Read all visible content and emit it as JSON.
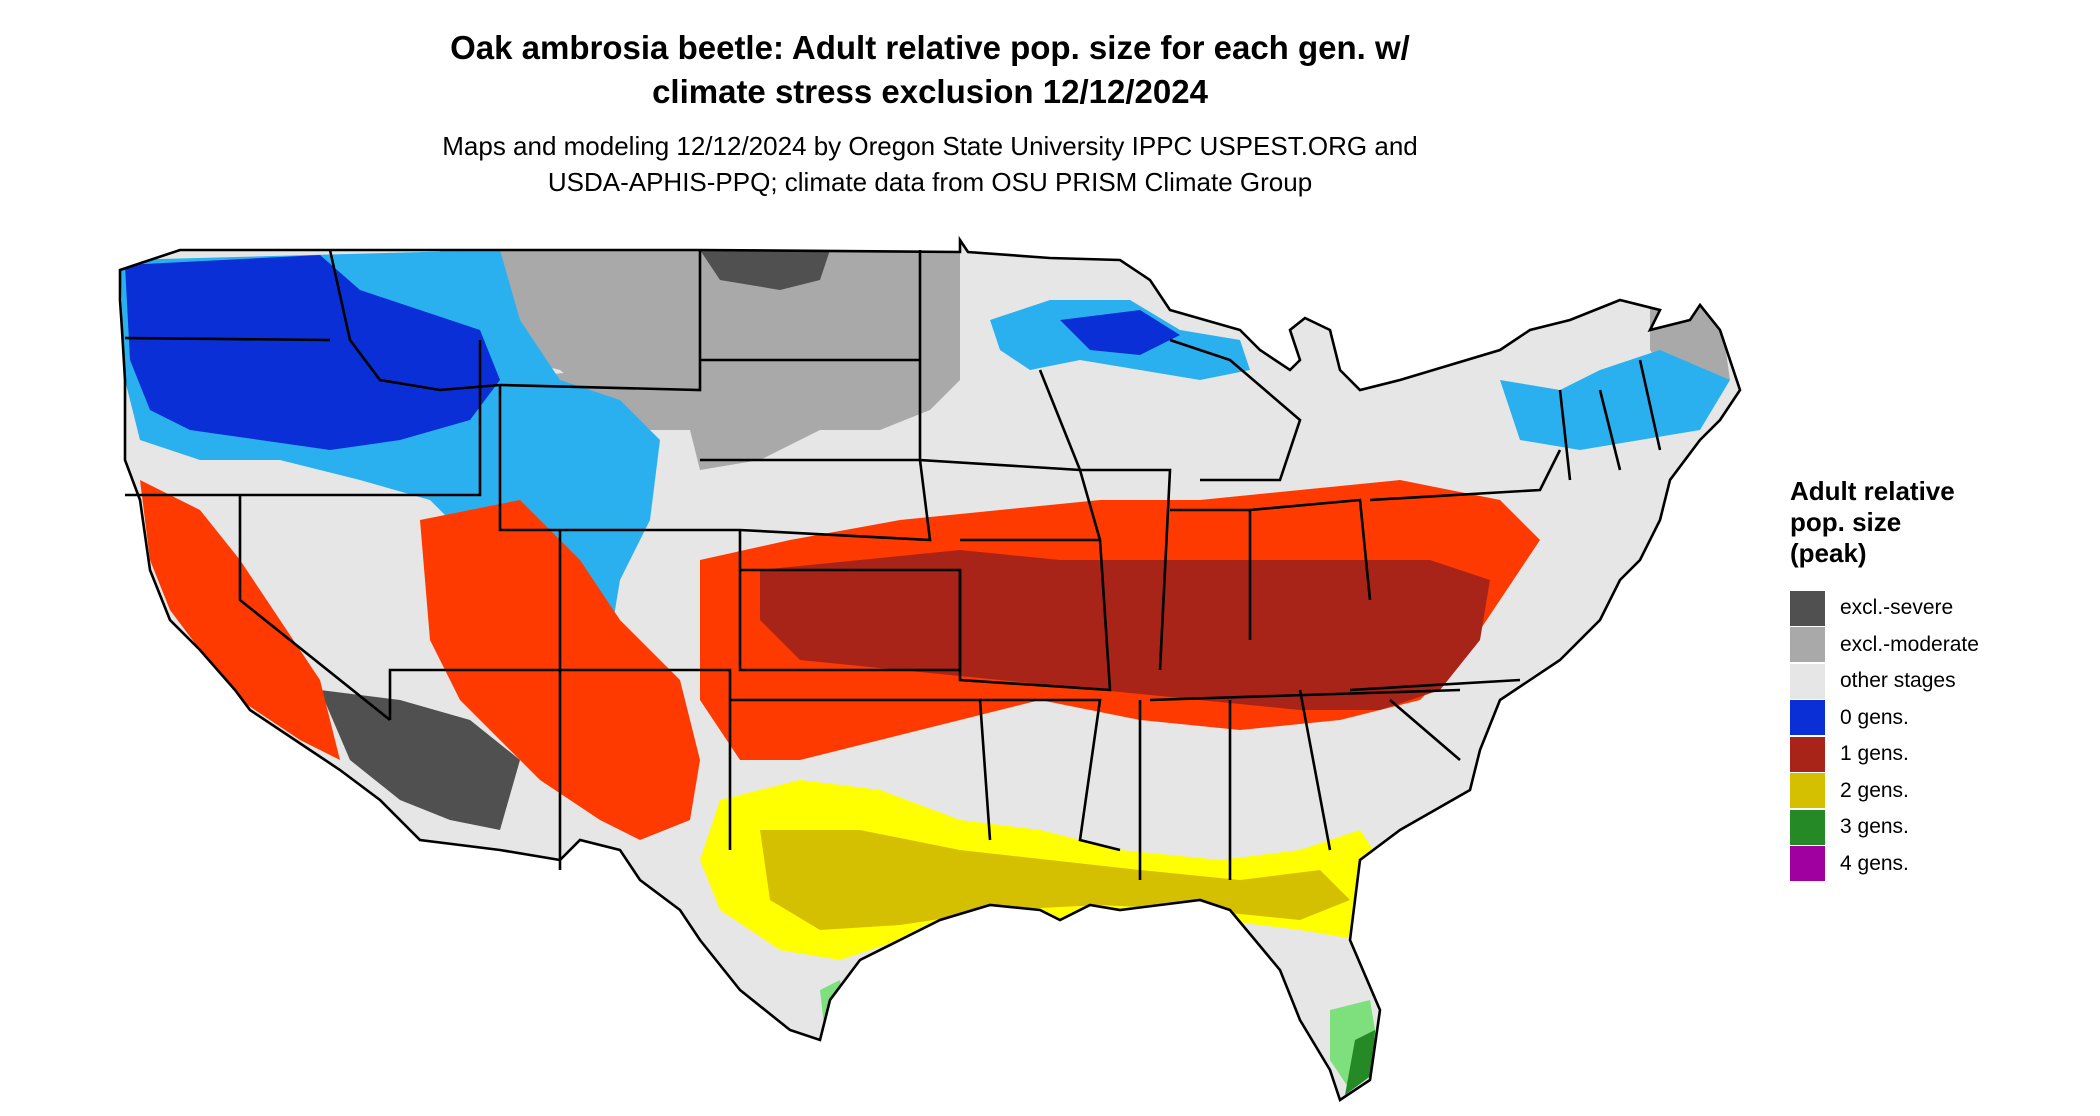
{
  "title": {
    "line1": "Oak ambrosia beetle: Adult relative pop. size for each gen. w/",
    "line2": "climate stress exclusion 12/12/2024"
  },
  "subtitle": {
    "line1": "Maps and modeling 12/12/2024 by Oregon State University IPPC USPEST.ORG and",
    "line2": "USDA-APHIS-PPQ; climate data from OSU PRISM Climate Group"
  },
  "legend": {
    "title_lines": [
      "Adult relative",
      "pop. size",
      "(peak)"
    ],
    "items": [
      {
        "label": "excl.-severe",
        "color": "#505050"
      },
      {
        "label": "excl.-moderate",
        "color": "#a9a9a9"
      },
      {
        "label": "other stages",
        "color": "#e6e6e6"
      },
      {
        "label": "0 gens.",
        "color": "#0a2fd6"
      },
      {
        "label": "1 gens.",
        "color": "#a82318"
      },
      {
        "label": "2 gens.",
        "color": "#d4c000"
      },
      {
        "label": "3 gens.",
        "color": "#258a25"
      },
      {
        "label": "4 gens.",
        "color": "#a100a1"
      }
    ]
  },
  "map": {
    "region": "conterminous United States",
    "zone_colors": {
      "background_land": "#e6e6e6",
      "excl_severe": "#505050",
      "excl_moderate": "#a9a9a9",
      "zero_gens_dark": "#0a2fd6",
      "zero_gens_light": "#2ab0ee",
      "one_gen_light": "#ff3a00",
      "one_gen_dark": "#a82318",
      "two_gens_light": "#ffff00",
      "two_gens_dark": "#d4c000",
      "three_gens": "#258a25",
      "three_gens_light": "#7de07d",
      "boundary": "#000000"
    }
  }
}
